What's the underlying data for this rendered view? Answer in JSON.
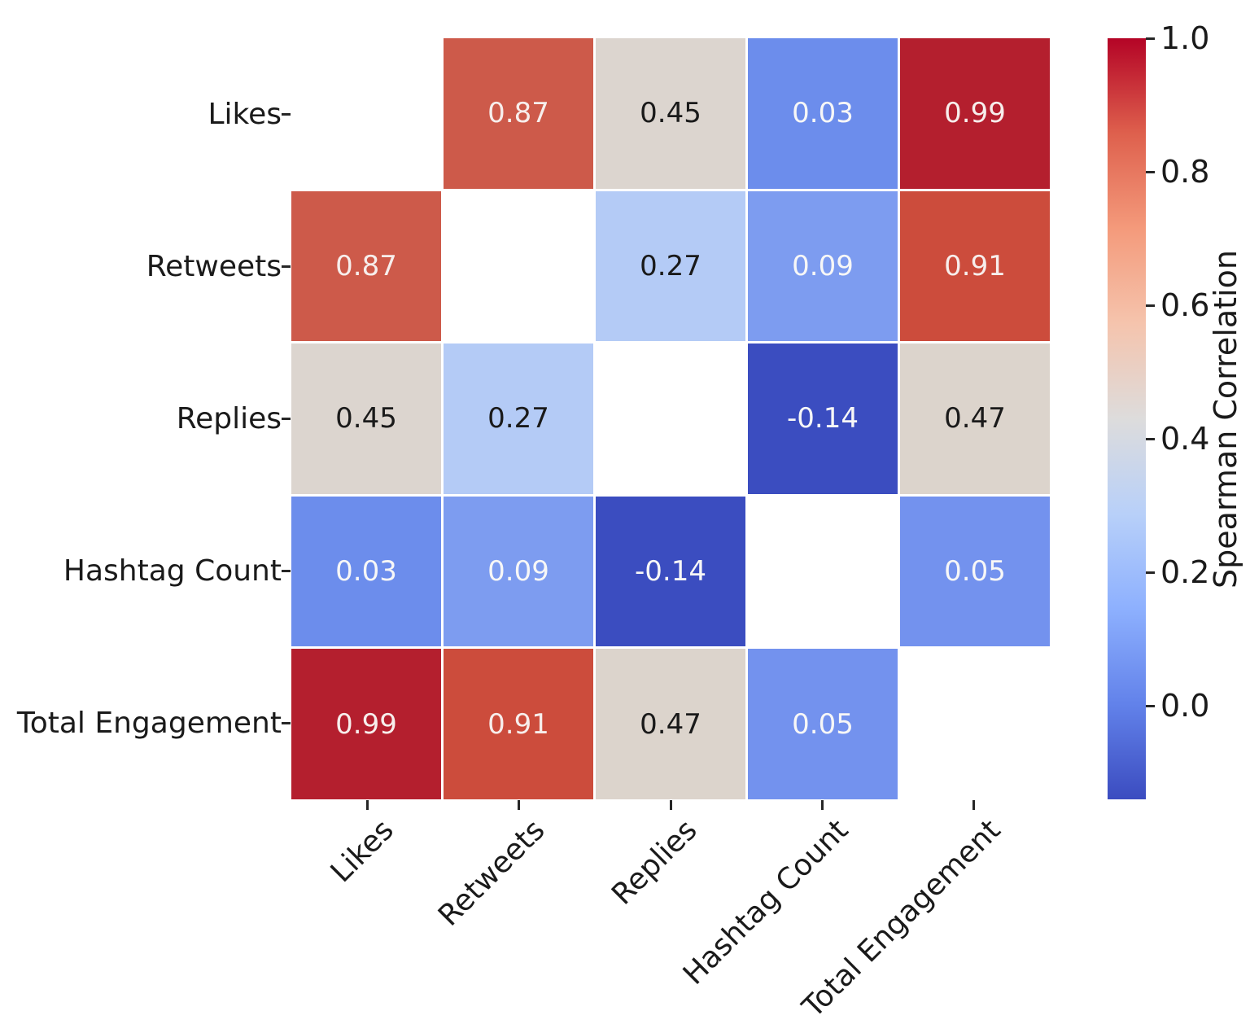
{
  "chart_data": {
    "type": "heatmap",
    "title": "",
    "categories": [
      "Likes",
      "Retweets",
      "Replies",
      "Hashtag Count",
      "Total Engagement"
    ],
    "matrix": [
      [
        null,
        0.87,
        0.45,
        0.03,
        0.99
      ],
      [
        0.87,
        null,
        0.27,
        0.09,
        0.91
      ],
      [
        0.45,
        0.27,
        null,
        -0.14,
        0.47
      ],
      [
        0.03,
        0.09,
        -0.14,
        null,
        0.05
      ],
      [
        0.99,
        0.91,
        0.47,
        0.05,
        null
      ]
    ],
    "mask": "diagonal",
    "masked_color": "#ffffff",
    "colormap": "coolwarm",
    "grid_line_color": "#ffffff",
    "tick_color": "#262626",
    "label_color": "#1a1a1a",
    "cell_styles": {
      "0.99": {
        "bg": "#b41f2e",
        "text": "#f7eeec"
      },
      "0.91": {
        "bg": "#cc4c3c",
        "text": "#f7eeec"
      },
      "0.87": {
        "bg": "#cd5a4a",
        "text": "#f7eeec"
      },
      "0.47": {
        "bg": "#dcd4cc",
        "text": "#1a1a1a"
      },
      "0.45": {
        "bg": "#dcd5cf",
        "text": "#1a1a1a"
      },
      "0.27": {
        "bg": "#b4cbf6",
        "text": "#1a1a1a"
      },
      "0.09": {
        "bg": "#7d9cf0",
        "text": "#f7f7f7"
      },
      "0.05": {
        "bg": "#7392ee",
        "text": "#f7f7f7"
      },
      "0.03": {
        "bg": "#6c8dec",
        "text": "#f7f7f7"
      },
      "-0.14": {
        "bg": "#3b4dc0",
        "text": "#f7f7f7"
      }
    },
    "colorbar": {
      "label": "Spearman Correlation",
      "vmin": -0.14,
      "vmax": 1.0,
      "tick_values": [
        1.0,
        0.8,
        0.6,
        0.4,
        0.2,
        0.0
      ],
      "tick_labels": [
        "1.0",
        "0.8",
        "0.6",
        "0.4",
        "0.2",
        "0.0"
      ],
      "gradient_bottom_to_top": [
        "#3b4cc0",
        "#6282ea",
        "#8db0fe",
        "#b8d0f9",
        "#dddcdc",
        "#f5c4ad",
        "#f49a7b",
        "#de604d",
        "#b40426"
      ]
    }
  }
}
